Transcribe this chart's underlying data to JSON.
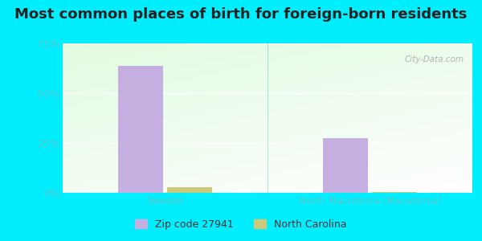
{
  "title": "Most common places of birth for foreign-born residents",
  "categories": [
    "Sweden",
    "North Macedonia (Macedonia)"
  ],
  "zip_values": [
    0.636,
    0.273
  ],
  "nc_values": [
    0.03,
    0.004
  ],
  "bar_color_zip": "#c5aee0",
  "bar_color_nc": "#cdc97a",
  "ylim": [
    0,
    0.75
  ],
  "yticks": [
    0,
    0.25,
    0.5,
    0.75
  ],
  "ytick_labels": [
    "0%",
    "25%",
    "50%",
    "75%"
  ],
  "legend_zip": "Zip code 27941",
  "legend_nc": "North Carolina",
  "background_outer": "#00eeff",
  "title_fontsize": 13,
  "tick_color": "#5bc8c8",
  "watermark": "City-Data.com",
  "gradient_top": "#c8e6c9",
  "gradient_bottom": "#f5fff5"
}
